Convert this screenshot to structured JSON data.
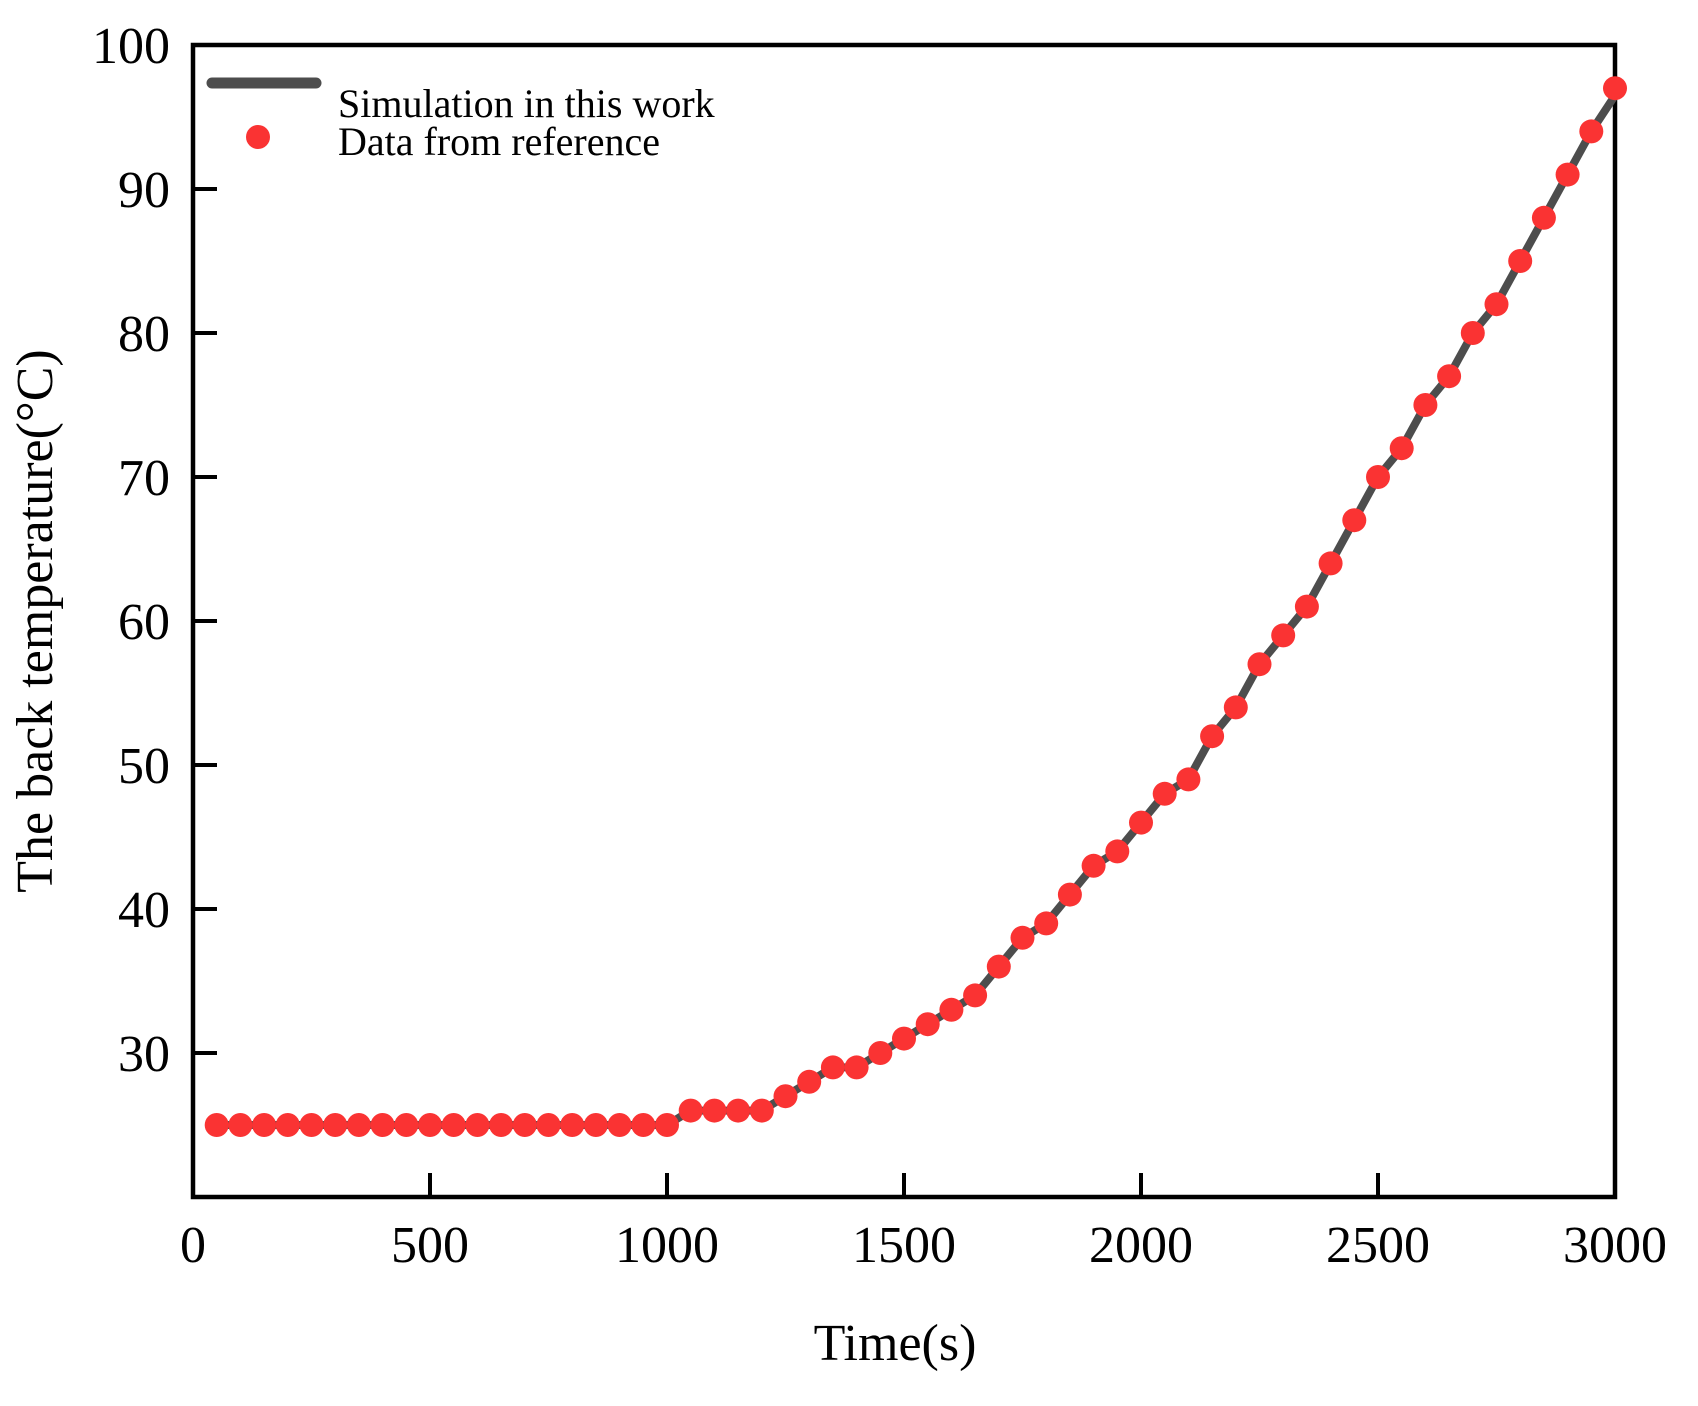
{
  "figure": {
    "background": "#ffffff",
    "axis_color": "#000000"
  },
  "legend": {
    "position": "top-left",
    "items": [
      {
        "label": "Simulation in this work",
        "swatch": "line",
        "color": "#4d4d4d"
      },
      {
        "label": "Data from reference",
        "swatch": "dot",
        "color": "#fa3333"
      }
    ]
  },
  "chart_data": {
    "type": "line",
    "title": "",
    "xlabel": "Time(s)",
    "ylabel": "The back temperature(°C)",
    "xlim": [
      0,
      3000
    ],
    "ylim": [
      20,
      100
    ],
    "xticks": [
      0,
      500,
      1000,
      1500,
      2000,
      2500,
      3000
    ],
    "yticks": [
      30,
      40,
      50,
      60,
      70,
      80,
      90,
      100
    ],
    "grid": false,
    "legend_position": "top-left",
    "x": [
      50,
      100,
      150,
      200,
      250,
      300,
      350,
      400,
      450,
      500,
      550,
      600,
      650,
      700,
      750,
      800,
      850,
      900,
      950,
      1000,
      1050,
      1100,
      1150,
      1200,
      1250,
      1300,
      1350,
      1400,
      1450,
      1500,
      1550,
      1600,
      1650,
      1700,
      1750,
      1800,
      1850,
      1900,
      1950,
      2000,
      2050,
      2100,
      2150,
      2200,
      2250,
      2300,
      2350,
      2400,
      2450,
      2500,
      2550,
      2600,
      2650,
      2700,
      2750,
      2800,
      2850,
      2900,
      2950,
      3000
    ],
    "series": [
      {
        "name": "Simulation in this work",
        "type": "line",
        "color": "#4d4d4d",
        "values": [
          25,
          25,
          25,
          25,
          25,
          25,
          25,
          25,
          25,
          25,
          25,
          25,
          25,
          25,
          25,
          25,
          25,
          25,
          25,
          25,
          26,
          26,
          26,
          26,
          27,
          28,
          29,
          29,
          30,
          31,
          32,
          33,
          34,
          36,
          38,
          39,
          41,
          43,
          44,
          46,
          48,
          49,
          52,
          54,
          57,
          59,
          61,
          64,
          67,
          70,
          72,
          75,
          77,
          80,
          82,
          85,
          88,
          91,
          94,
          96.5
        ]
      },
      {
        "name": "Data from reference",
        "type": "scatter",
        "color": "#fa3333",
        "values": [
          25,
          25,
          25,
          25,
          25,
          25,
          25,
          25,
          25,
          25,
          25,
          25,
          25,
          25,
          25,
          25,
          25,
          25,
          25,
          25,
          26,
          26,
          26,
          26,
          27,
          28,
          29,
          29,
          30,
          31,
          32,
          33,
          34,
          36,
          38,
          39,
          41,
          43,
          44,
          46,
          48,
          49,
          52,
          54,
          57,
          59,
          61,
          64,
          67,
          70,
          72,
          75,
          77,
          80,
          82,
          85,
          88,
          91,
          94,
          97
        ]
      }
    ]
  }
}
